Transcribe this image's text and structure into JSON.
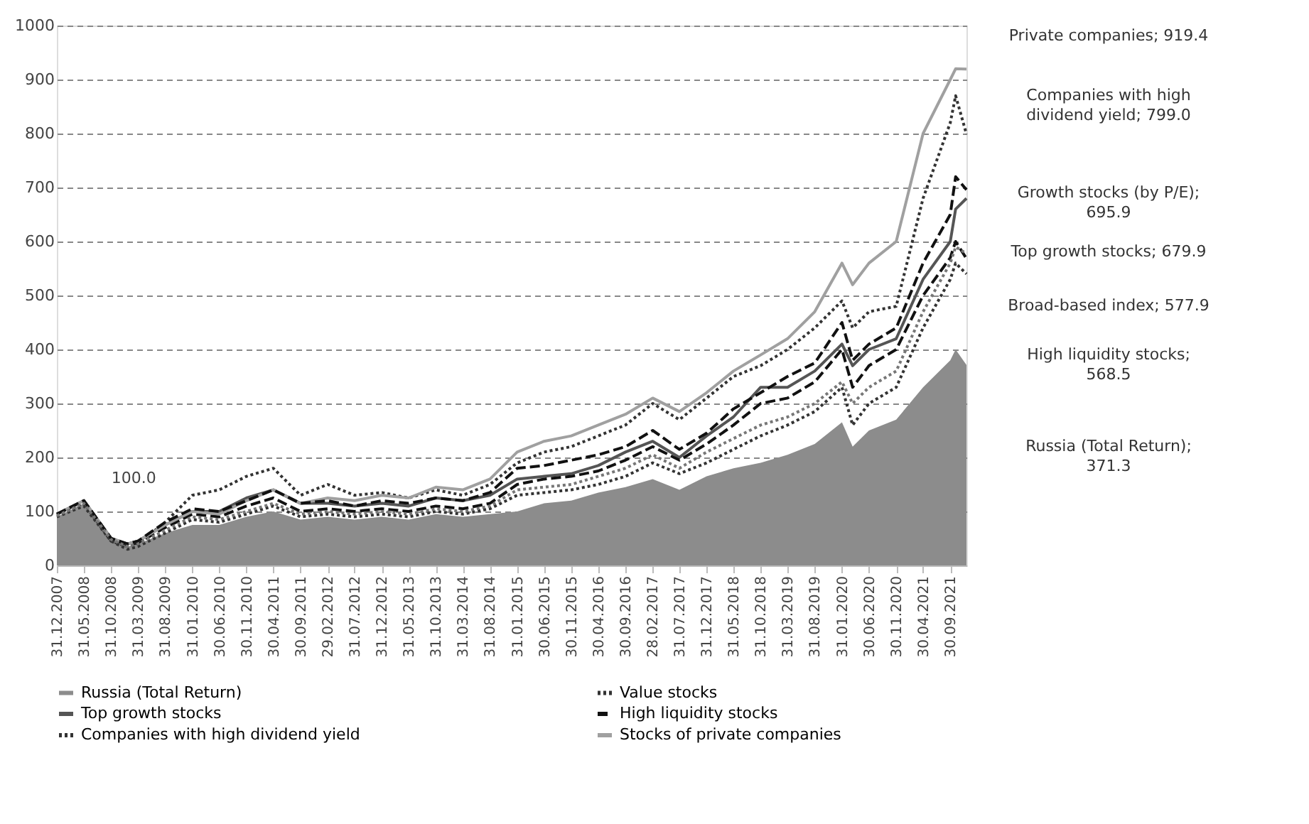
{
  "chart_data": {
    "type": "line",
    "x": [
      "2007-12",
      "2008-05",
      "2008-10",
      "2009-01",
      "2009-03",
      "2009-08",
      "2010-01",
      "2010-06",
      "2010-11",
      "2011-04",
      "2011-09",
      "2012-02",
      "2012-07",
      "2012-12",
      "2013-05",
      "2013-10",
      "2014-03",
      "2014-08",
      "2015-01",
      "2015-06",
      "2015-11",
      "2016-04",
      "2016-09",
      "2017-02",
      "2017-07",
      "2017-12",
      "2018-05",
      "2018-10",
      "2019-03",
      "2019-08",
      "2020-01",
      "2020-03",
      "2020-06",
      "2020-11",
      "2021-04",
      "2021-09",
      "2021-10",
      "2021-12"
    ],
    "series": [
      {
        "name": "Russia (Total Return)",
        "type": "area",
        "color": "#8c8c8c",
        "values": [
          90,
          115,
          50,
          35,
          40,
          60,
          75,
          75,
          90,
          100,
          85,
          90,
          85,
          90,
          85,
          95,
          90,
          95,
          100,
          115,
          120,
          135,
          145,
          160,
          140,
          165,
          180,
          190,
          205,
          225,
          265,
          220,
          250,
          270,
          330,
          380,
          400,
          371.3
        ]
      },
      {
        "name": "Value stocks",
        "color": "#333333",
        "line_style": "dotted",
        "values": [
          90,
          110,
          45,
          30,
          35,
          60,
          85,
          80,
          95,
          110,
          90,
          95,
          90,
          95,
          90,
          100,
          95,
          105,
          130,
          135,
          140,
          150,
          165,
          190,
          170,
          190,
          215,
          240,
          260,
          285,
          330,
          260,
          300,
          330,
          440,
          530,
          560,
          540
        ]
      },
      {
        "name": "Top growth stocks",
        "color": "#555555",
        "line_style": "solid",
        "values": [
          95,
          120,
          50,
          40,
          45,
          75,
          100,
          100,
          125,
          140,
          115,
          115,
          110,
          115,
          110,
          125,
          120,
          130,
          160,
          165,
          170,
          185,
          210,
          230,
          200,
          240,
          275,
          330,
          330,
          360,
          410,
          370,
          400,
          420,
          530,
          600,
          660,
          679.9
        ]
      },
      {
        "name": "High liquidity stocks",
        "color": "#111111",
        "line_style": "dashed",
        "values": [
          95,
          120,
          50,
          38,
          42,
          70,
          95,
          90,
          110,
          125,
          100,
          105,
          100,
          105,
          100,
          110,
          105,
          115,
          150,
          160,
          165,
          175,
          195,
          220,
          195,
          225,
          260,
          300,
          310,
          340,
          400,
          330,
          370,
          400,
          500,
          570,
          600,
          568.5
        ]
      },
      {
        "name": "Companies with high dividend yield",
        "color": "#333333",
        "line_style": "dotted",
        "values": [
          95,
          115,
          45,
          35,
          40,
          80,
          130,
          140,
          165,
          180,
          130,
          150,
          130,
          135,
          125,
          140,
          130,
          150,
          190,
          210,
          220,
          240,
          260,
          300,
          270,
          310,
          350,
          370,
          400,
          440,
          490,
          440,
          470,
          480,
          680,
          820,
          870,
          799.0
        ]
      },
      {
        "name": "Stocks of private companies",
        "color": "#a0a0a0",
        "line_style": "solid",
        "values": [
          95,
          120,
          50,
          40,
          45,
          75,
          100,
          95,
          120,
          140,
          115,
          125,
          120,
          130,
          125,
          145,
          140,
          160,
          210,
          230,
          240,
          260,
          280,
          310,
          285,
          320,
          360,
          390,
          420,
          470,
          560,
          520,
          560,
          600,
          800,
          900,
          920,
          919.4
        ]
      },
      {
        "color": "#111111",
        "line_style": "dashed",
        "values": [
          95,
          120,
          50,
          40,
          45,
          80,
          105,
          100,
          120,
          140,
          115,
          120,
          110,
          120,
          115,
          125,
          120,
          135,
          180,
          185,
          195,
          205,
          220,
          250,
          215,
          245,
          290,
          320,
          350,
          375,
          450,
          380,
          410,
          440,
          560,
          650,
          720,
          695.9
        ]
      },
      {
        "color": "#777777",
        "line_style": "dotted",
        "values": [
          92,
          115,
          48,
          35,
          40,
          65,
          90,
          85,
          100,
          115,
          95,
          100,
          95,
          100,
          95,
          105,
          100,
          110,
          140,
          145,
          150,
          165,
          180,
          205,
          180,
          210,
          235,
          260,
          275,
          300,
          340,
          300,
          330,
          360,
          470,
          560,
          590,
          577.9
        ]
      }
    ],
    "ylim": [
      0,
      1000
    ],
    "yticks": [
      0,
      100,
      200,
      300,
      400,
      500,
      600,
      700,
      800,
      900,
      1000
    ],
    "xlim": [
      "2007-12",
      "2021-12"
    ],
    "xticks": [
      {
        "value": "2007-12",
        "label": "31.12.2007"
      },
      {
        "value": "2008-05",
        "label": "31.05.2008"
      },
      {
        "value": "2008-10",
        "label": "31.10.2008"
      },
      {
        "value": "2009-03",
        "label": "31.03.2009"
      },
      {
        "value": "2009-08",
        "label": "31.08.2009"
      },
      {
        "value": "2010-01",
        "label": "31.01.2010"
      },
      {
        "value": "2010-06",
        "label": "30.06.2010"
      },
      {
        "value": "2010-11",
        "label": "30.11.2010"
      },
      {
        "value": "2011-04",
        "label": "30.04.2011"
      },
      {
        "value": "2011-09",
        "label": "30.09.2011"
      },
      {
        "value": "2012-02",
        "label": "29.02.2012"
      },
      {
        "value": "2012-07",
        "label": "31.07.2012"
      },
      {
        "value": "2012-12",
        "label": "31.12.2012"
      },
      {
        "value": "2013-05",
        "label": "31.05.2013"
      },
      {
        "value": "2013-10",
        "label": "31.10.2013"
      },
      {
        "value": "2014-03",
        "label": "31.03.2014"
      },
      {
        "value": "2014-08",
        "label": "31.08.2014"
      },
      {
        "value": "2015-01",
        "label": "31.01.2015"
      },
      {
        "value": "2015-06",
        "label": "30.06.2015"
      },
      {
        "value": "2015-11",
        "label": "30.11.2015"
      },
      {
        "value": "2016-04",
        "label": "30.04.2016"
      },
      {
        "value": "2016-09",
        "label": "30.09.2016"
      },
      {
        "value": "2017-02",
        "label": "28.02.2017"
      },
      {
        "value": "2017-07",
        "label": "31.07.2017"
      },
      {
        "value": "2017-12",
        "label": "31.12.2017"
      },
      {
        "value": "2018-05",
        "label": "31.05.2018"
      },
      {
        "value": "2018-10",
        "label": "31.10.2018"
      },
      {
        "value": "2019-03",
        "label": "31.03.2019"
      },
      {
        "value": "2019-08",
        "label": "31.08.2019"
      },
      {
        "value": "2020-01",
        "label": "31.01.2020"
      },
      {
        "value": "2020-06",
        "label": "30.06.2020"
      },
      {
        "value": "2020-11",
        "label": "30.11.2020"
      },
      {
        "value": "2021-04",
        "label": "30.04.2021"
      },
      {
        "value": "2021-09",
        "label": "30.09.2021"
      }
    ],
    "grid": "y",
    "legend": "bottom",
    "annotations": [
      "100.0",
      "Private companies; 919.4",
      "Companies with high dividend yield; 799.0",
      "Growth stocks (by P/E); 695.9",
      "Top growth stocks; 679.9",
      "Broad-based index; 577.9",
      "High liquidity stocks; 568.5",
      "Russia (Total Return); 371.3"
    ]
  }
}
